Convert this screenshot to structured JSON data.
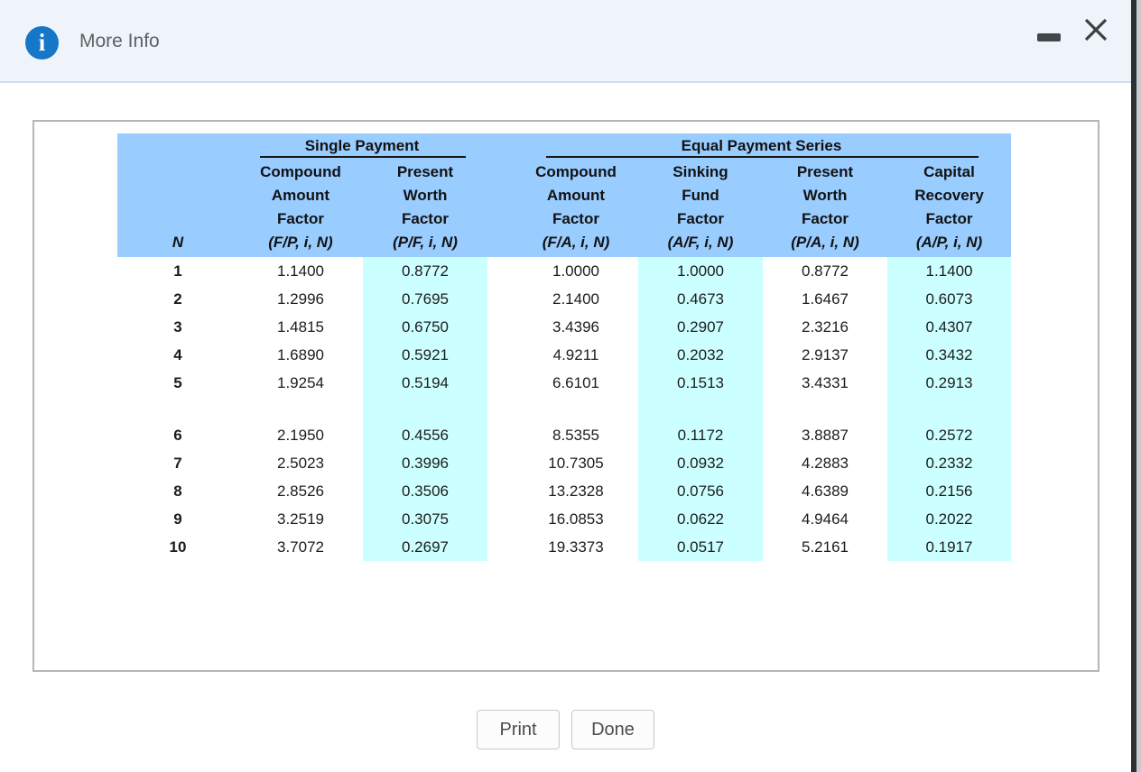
{
  "window": {
    "title": "More Info",
    "icons": {
      "info": "info-icon",
      "minimize": "minimize-icon",
      "close": "close-icon"
    },
    "info_glyph": "i"
  },
  "table": {
    "group_headers": [
      {
        "label": "Single Payment",
        "span": 2
      },
      {
        "label": "Equal Payment Series",
        "span": 4
      }
    ],
    "columns": [
      {
        "key": "n",
        "lines": [],
        "formula": "N",
        "highlight": false
      },
      {
        "key": "fp",
        "lines": [
          "Compound",
          "Amount",
          "Factor"
        ],
        "formula": "(F/P, i, N)",
        "highlight": false
      },
      {
        "key": "pf",
        "lines": [
          "Present",
          "Worth",
          "Factor"
        ],
        "formula": "(P/F, i, N)",
        "highlight": true
      },
      {
        "key": "fa",
        "lines": [
          "Compound",
          "Amount",
          "Factor"
        ],
        "formula": "(F/A, i, N)",
        "highlight": false
      },
      {
        "key": "af",
        "lines": [
          "Sinking",
          "Fund",
          "Factor"
        ],
        "formula": "(A/F, i, N)",
        "highlight": true
      },
      {
        "key": "pa",
        "lines": [
          "Present",
          "Worth",
          "Factor"
        ],
        "formula": "(P/A, i, N)",
        "highlight": false
      },
      {
        "key": "ap",
        "lines": [
          "Capital",
          "Recovery",
          "Factor"
        ],
        "formula": "(A/P, i, N)",
        "highlight": true
      }
    ],
    "rows": [
      [
        "1",
        "1.1400",
        "0.8772",
        "1.0000",
        "1.0000",
        "0.8772",
        "1.1400"
      ],
      [
        "2",
        "1.2996",
        "0.7695",
        "2.1400",
        "0.4673",
        "1.6467",
        "0.6073"
      ],
      [
        "3",
        "1.4815",
        "0.6750",
        "3.4396",
        "0.2907",
        "2.3216",
        "0.4307"
      ],
      [
        "4",
        "1.6890",
        "0.5921",
        "4.9211",
        "0.2032",
        "2.9137",
        "0.3432"
      ],
      [
        "5",
        "1.9254",
        "0.5194",
        "6.6101",
        "0.1513",
        "3.4331",
        "0.2913"
      ],
      [
        "6",
        "2.1950",
        "0.4556",
        "8.5355",
        "0.1172",
        "3.8887",
        "0.2572"
      ],
      [
        "7",
        "2.5023",
        "0.3996",
        "10.7305",
        "0.0932",
        "4.2883",
        "0.2332"
      ],
      [
        "8",
        "2.8526",
        "0.3506",
        "13.2328",
        "0.0756",
        "4.6389",
        "0.2156"
      ],
      [
        "9",
        "3.2519",
        "0.3075",
        "16.0853",
        "0.0622",
        "4.9464",
        "0.2022"
      ],
      [
        "10",
        "3.7072",
        "0.2697",
        "19.3373",
        "0.0517",
        "5.2161",
        "0.1917"
      ]
    ],
    "gap_after_row_index": 4
  },
  "footer": {
    "print_label": "Print",
    "done_label": "Done"
  },
  "colors": {
    "header_blue": "#99ccff",
    "highlight_cyan": "#ccffff",
    "titlebar_bg": "#eff4fb",
    "info_icon_blue": "#1677c8",
    "window_control_gray": "#43474c"
  }
}
